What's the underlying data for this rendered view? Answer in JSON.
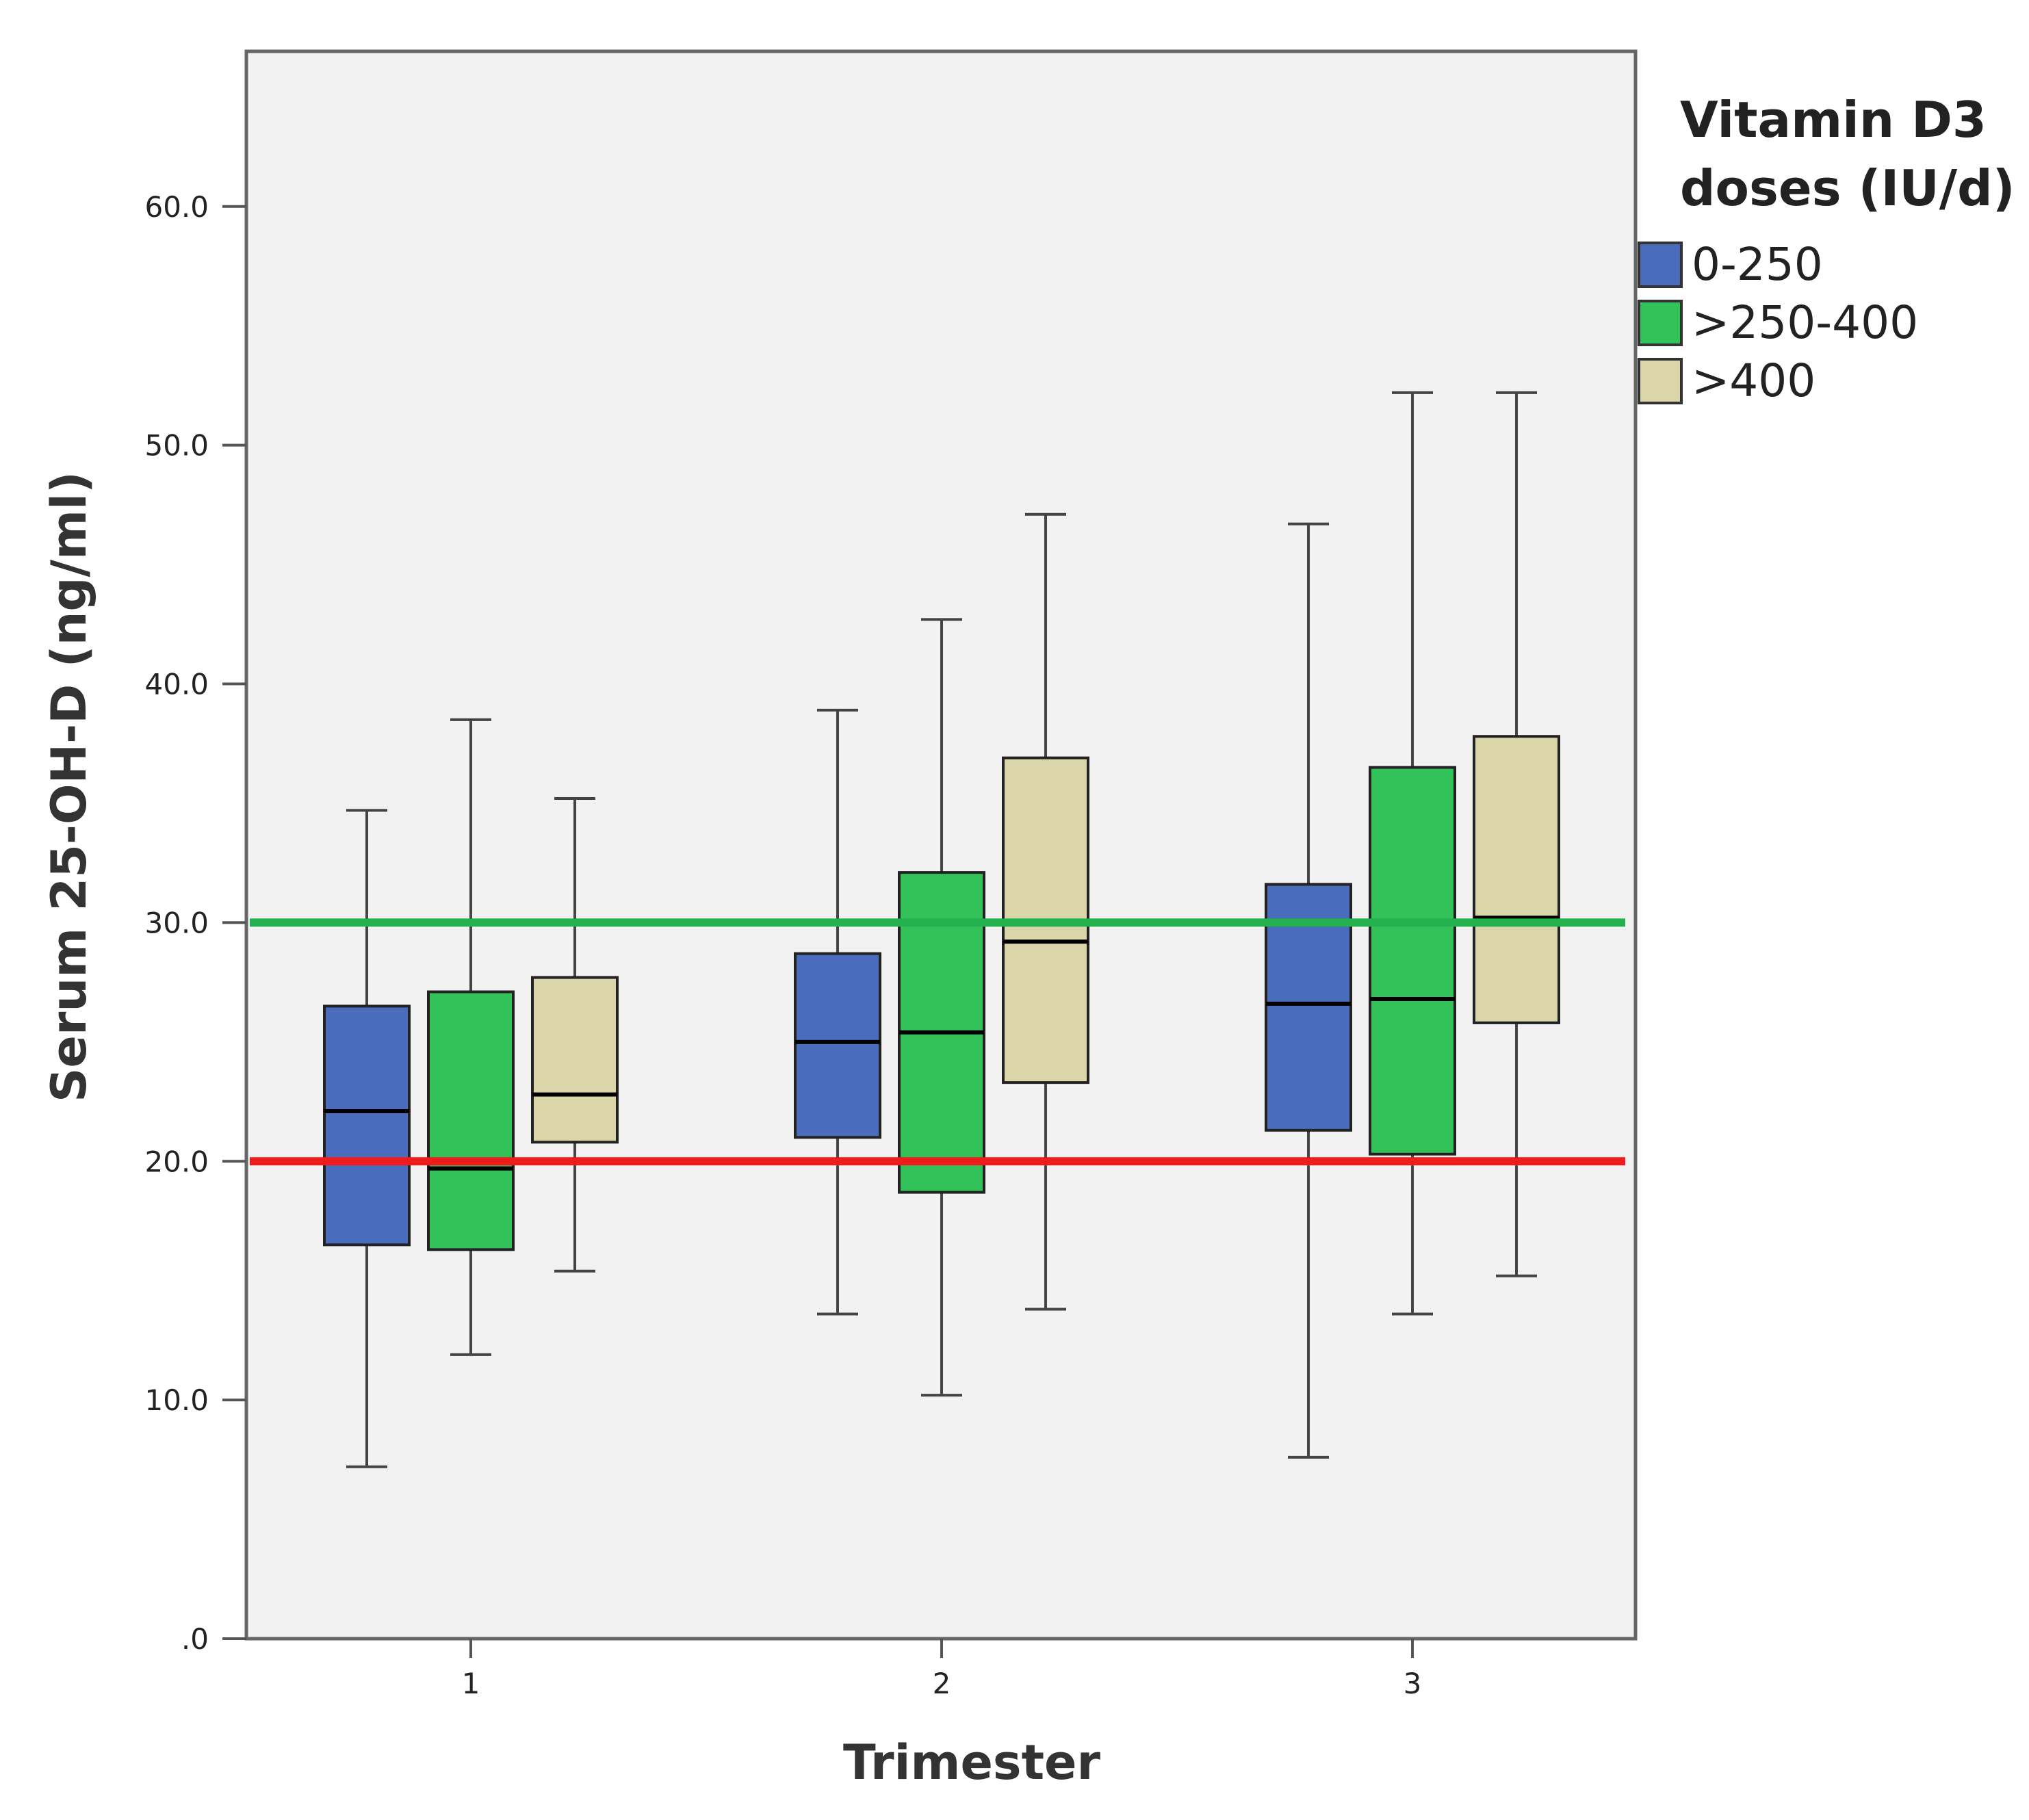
{
  "chart_data": {
    "type": "boxplot",
    "xlabel": "Trimester",
    "ylabel": "Serum 25-OH-D  (ng/ml)",
    "ylim": [
      0,
      66.5
    ],
    "y_ticks": [
      0,
      10,
      20,
      30,
      40,
      50,
      60
    ],
    "y_tick_labels": [
      ".0",
      "10.0",
      "20.0",
      "30.0",
      "40.0",
      "50.0",
      "60.0"
    ],
    "categories": [
      "1",
      "2",
      "3"
    ],
    "legend": {
      "title_lines": [
        "Vitamin D3",
        "doses (IU/d)"
      ],
      "position": "right"
    },
    "series": [
      {
        "name": "0-250",
        "color": "#4a6cbc",
        "boxes": [
          {
            "min": 7.2,
            "q1": 16.5,
            "median": 22.1,
            "q3": 26.5,
            "max": 34.7
          },
          {
            "min": 13.6,
            "q1": 21.0,
            "median": 25.0,
            "q3": 28.7,
            "max": 38.9
          },
          {
            "min": 7.6,
            "q1": 21.3,
            "median": 26.6,
            "q3": 31.6,
            "max": 46.7
          }
        ]
      },
      {
        "name": ">250-400",
        "color": "#33c159",
        "boxes": [
          {
            "min": 11.9,
            "q1": 16.3,
            "median": 19.7,
            "q3": 27.1,
            "max": 38.5
          },
          {
            "min": 10.2,
            "q1": 18.7,
            "median": 25.4,
            "q3": 32.1,
            "max": 42.7
          },
          {
            "min": 13.6,
            "q1": 20.3,
            "median": 26.8,
            "q3": 36.5,
            "max": 52.2
          }
        ]
      },
      {
        "name": ">400",
        "color": "#dbd6aa",
        "boxes": [
          {
            "min": 15.4,
            "q1": 20.8,
            "median": 22.8,
            "q3": 27.7,
            "max": 35.2
          },
          {
            "min": 13.8,
            "q1": 23.3,
            "median": 29.2,
            "q3": 36.9,
            "max": 47.1
          },
          {
            "min": 15.2,
            "q1": 25.8,
            "median": 30.2,
            "q3": 37.8,
            "max": 52.2
          }
        ]
      }
    ],
    "reference_lines": [
      {
        "value": 30,
        "color": "#22b14c"
      },
      {
        "value": 20,
        "color": "#ee1c1c"
      }
    ]
  }
}
